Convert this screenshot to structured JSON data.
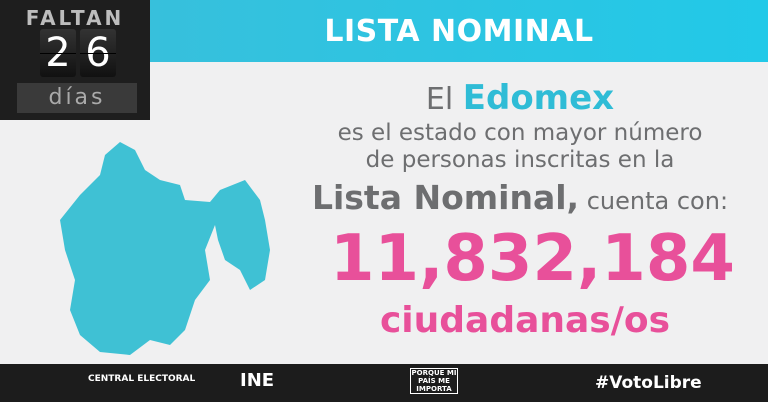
{
  "countdown": {
    "label": "FALTAN",
    "digits": [
      "2",
      "6"
    ],
    "unit": "días"
  },
  "header": {
    "title": "LISTA NOMINAL"
  },
  "message": {
    "line1_prefix": "El",
    "state": "Edomex",
    "line2": "es el estado con mayor número",
    "line3": "de personas inscritas en la",
    "line4_bold": "Lista Nominal,",
    "line4_rest": "cuenta con:",
    "count": "11,832,184",
    "unit": "ciudadanas/os"
  },
  "footer": {
    "logos": [
      "CENTRAL ELECTORAL",
      "INE",
      "PORQUE MI PAÍS ME IMPORTA"
    ],
    "hashtag": "#VotoLibre"
  },
  "colors": {
    "cyan": "#37c0dc",
    "pink": "#e8509a",
    "map": "#3fc1d4"
  }
}
